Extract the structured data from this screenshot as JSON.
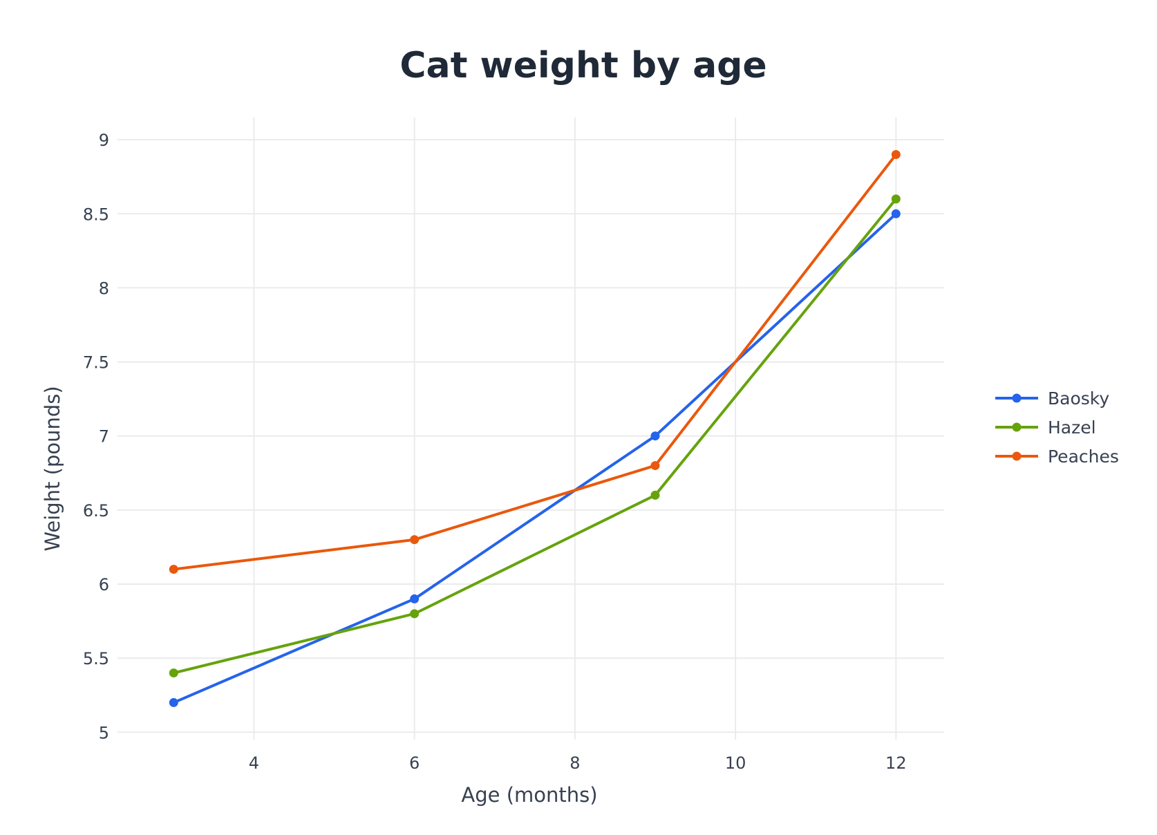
{
  "chart_data": {
    "type": "line",
    "title": "Cat weight by age",
    "xlabel": "Age (months)",
    "ylabel": "Weight (pounds)",
    "x": [
      3,
      6,
      9,
      12
    ],
    "xlim": [
      2.3,
      12.6
    ],
    "ylim": [
      4.95,
      9.15
    ],
    "xticks": [
      4,
      6,
      8,
      10,
      12
    ],
    "yticks": [
      5,
      5.5,
      6,
      6.5,
      7,
      7.5,
      8,
      8.5,
      9
    ],
    "grid": true,
    "legend_position": "right",
    "markers": true,
    "series": [
      {
        "name": "Baosky",
        "color": "#2563eb",
        "values": [
          5.2,
          5.9,
          7.0,
          8.5
        ]
      },
      {
        "name": "Hazel",
        "color": "#65a30d",
        "values": [
          5.4,
          5.8,
          6.6,
          8.6
        ]
      },
      {
        "name": "Peaches",
        "color": "#ea580c",
        "values": [
          6.1,
          6.3,
          6.8,
          8.9
        ]
      }
    ]
  }
}
